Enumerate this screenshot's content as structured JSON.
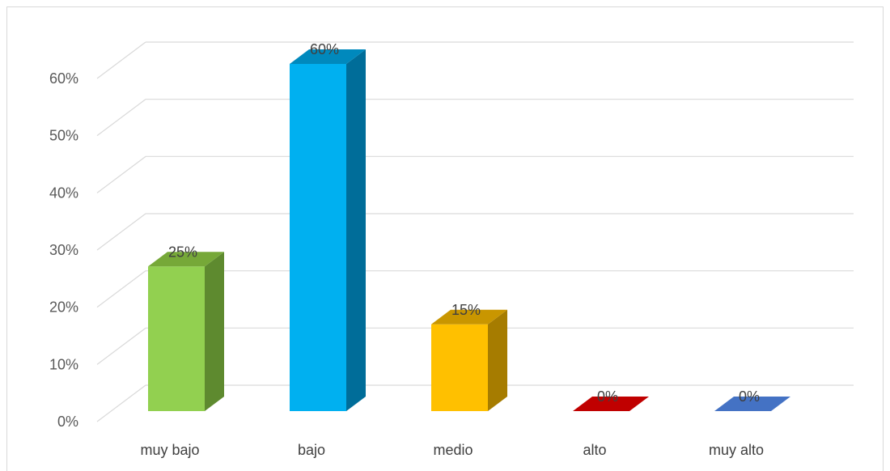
{
  "chart_data": {
    "type": "bar",
    "style": "3d-column",
    "categories": [
      "muy bajo",
      "bajo",
      "medio",
      "alto",
      "muy alto"
    ],
    "values": [
      25,
      60,
      15,
      0,
      0
    ],
    "data_labels": [
      "25%",
      "60%",
      "15%",
      "0%",
      "0%"
    ],
    "y_ticks": [
      "0%",
      "10%",
      "20%",
      "30%",
      "40%",
      "50%",
      "60%"
    ],
    "ylim": [
      0,
      60
    ],
    "grid": true,
    "legend": "none",
    "colors": {
      "front": [
        "#92d050",
        "#00b0f0",
        "#ffc000",
        "#c00000",
        "#4472c4"
      ],
      "side": [
        "#5e8a2f",
        "#006d99",
        "#a67c00",
        "#7a0000",
        "#2f5597"
      ],
      "top": [
        "#76a838",
        "#0089bd",
        "#c99600",
        "#900000",
        "#36599c"
      ],
      "grid": "#d9d9d9",
      "frame": "#d9d9d9"
    }
  }
}
